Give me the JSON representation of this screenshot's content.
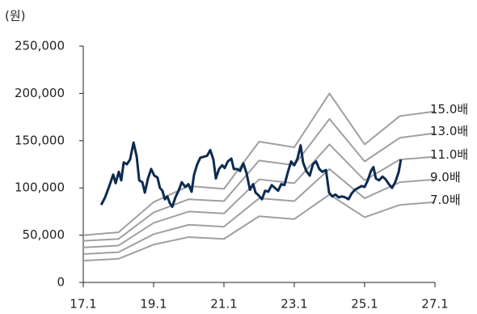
{
  "chart_data": {
    "type": "line",
    "y_label": "(원)",
    "xlim": [
      17,
      27
    ],
    "xticks": [
      {
        "value": 17,
        "label": "17.1"
      },
      {
        "value": 19,
        "label": "19.1"
      },
      {
        "value": 21,
        "label": "21.1"
      },
      {
        "value": 23,
        "label": "23.1"
      },
      {
        "value": 25,
        "label": "25.1"
      },
      {
        "value": 27,
        "label": "27.1"
      }
    ],
    "ylim": [
      0,
      250000
    ],
    "yticks": [
      0,
      {
        "value": 50000,
        "label": "50,000"
      },
      {
        "value": 100000,
        "label": "100,000"
      },
      {
        "value": 150000,
        "label": "150,000"
      },
      {
        "value": 200000,
        "label": "200,000"
      },
      {
        "value": 250000,
        "label": "250,000"
      }
    ],
    "grid": false,
    "series": [
      {
        "name": "15.0배",
        "color": "#a0a0a0",
        "x": [
          17,
          18,
          19,
          20,
          21,
          22,
          23,
          24,
          25,
          26,
          27
        ],
        "values": [
          50000,
          53000,
          85000,
          102000,
          99000,
          149000,
          143000,
          200000,
          146000,
          176000,
          181000
        ]
      },
      {
        "name": "13.0배",
        "color": "#a0a0a0",
        "x": [
          17,
          18,
          19,
          20,
          21,
          22,
          23,
          24,
          25,
          26,
          27
        ],
        "values": [
          44000,
          46000,
          74000,
          88000,
          86000,
          129000,
          124000,
          173000,
          128000,
          153000,
          158000
        ]
      },
      {
        "name": "11.0배",
        "color": "#a0a0a0",
        "x": [
          17,
          18,
          19,
          20,
          21,
          22,
          23,
          24,
          25,
          26,
          27
        ],
        "values": [
          37000,
          39000,
          63000,
          75000,
          73000,
          109000,
          105000,
          146000,
          108000,
          130000,
          133000
        ]
      },
      {
        "name": "9.0배",
        "color": "#a0a0a0",
        "x": [
          17,
          18,
          19,
          20,
          21,
          22,
          23,
          24,
          25,
          26,
          27
        ],
        "values": [
          30000,
          32000,
          51000,
          61000,
          59000,
          89000,
          86000,
          120000,
          89000,
          106000,
          109000
        ]
      },
      {
        "name": "7.0배",
        "color": "#a0a0a0",
        "x": [
          17,
          18,
          19,
          20,
          21,
          22,
          23,
          24,
          25,
          26,
          27
        ],
        "values": [
          23000,
          25000,
          40000,
          48000,
          46000,
          70000,
          67000,
          93000,
          69000,
          82000,
          85000
        ]
      },
      {
        "color": "#0d2b52",
        "x": [
          17.51,
          17.62,
          17.74,
          17.85,
          17.92,
          18.01,
          18.08,
          18.15,
          18.24,
          18.33,
          18.43,
          18.52,
          18.59,
          18.68,
          18.75,
          18.84,
          18.93,
          19.02,
          19.11,
          19.18,
          19.25,
          19.32,
          19.39,
          19.46,
          19.53,
          19.62,
          19.71,
          19.8,
          19.9,
          19.99,
          20.08,
          20.15,
          20.24,
          20.33,
          20.43,
          20.52,
          20.61,
          20.7,
          20.77,
          20.86,
          20.95,
          21.02,
          21.11,
          21.21,
          21.28,
          21.37,
          21.46,
          21.55,
          21.64,
          21.74,
          21.83,
          21.9,
          21.99,
          22.08,
          22.17,
          22.26,
          22.36,
          22.45,
          22.54,
          22.63,
          22.72,
          22.82,
          22.91,
          23.0,
          23.09,
          23.18,
          23.25,
          23.34,
          23.44,
          23.53,
          23.62,
          23.71,
          23.8,
          23.9,
          23.99,
          24.08,
          24.17,
          24.26,
          24.36,
          24.45,
          24.54,
          24.63,
          24.72,
          24.82,
          24.91,
          25.0,
          25.09,
          25.18,
          25.25,
          25.32,
          25.41,
          25.51,
          25.6,
          25.69,
          25.78,
          25.87,
          25.97,
          26.03
        ],
        "values": [
          82000,
          90000,
          102000,
          114000,
          105000,
          117000,
          108000,
          127000,
          125000,
          130000,
          148000,
          133000,
          108000,
          106000,
          95000,
          110000,
          120000,
          113000,
          111000,
          100000,
          97000,
          88000,
          91000,
          84000,
          80000,
          90000,
          97000,
          106000,
          101000,
          104000,
          96000,
          114000,
          125000,
          132000,
          133000,
          134000,
          140000,
          130000,
          110000,
          120000,
          124000,
          121000,
          128000,
          131000,
          120000,
          120000,
          118000,
          126000,
          116000,
          98000,
          104000,
          95000,
          92000,
          88000,
          97000,
          96000,
          103000,
          100000,
          97000,
          104000,
          103000,
          117000,
          128000,
          124000,
          131000,
          145000,
          127000,
          118000,
          113000,
          125000,
          128000,
          120000,
          117000,
          119000,
          95000,
          91000,
          93000,
          90000,
          91000,
          90000,
          88000,
          94000,
          98000,
          100000,
          102000,
          101000,
          108000,
          118000,
          122000,
          110000,
          108000,
          112000,
          109000,
          104000,
          100000,
          106000,
          117000,
          130000
        ]
      }
    ]
  }
}
